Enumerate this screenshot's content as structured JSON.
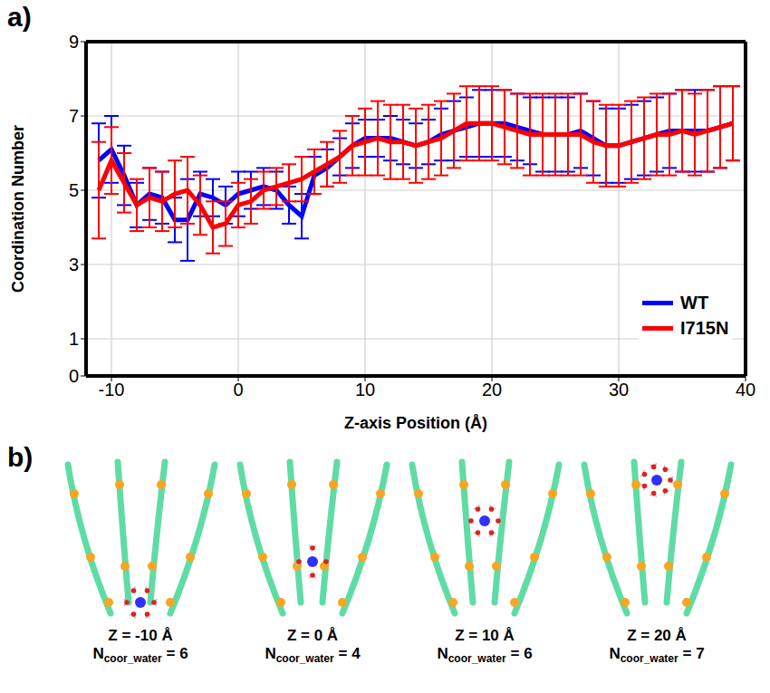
{
  "chart_data": {
    "type": "line",
    "panel_label": "a)",
    "x_label": "Z-axis Position (Å)",
    "y_label": "Coordination Number",
    "xlim": [
      -12,
      40
    ],
    "xticks": [
      -10,
      0,
      10,
      20,
      30,
      40
    ],
    "ylim": [
      0,
      9
    ],
    "yticks": [
      0,
      1,
      3,
      5,
      7,
      9
    ],
    "grid": true,
    "legend": "lower right",
    "x": [
      -11,
      -10,
      -9,
      -8,
      -7,
      -6,
      -5,
      -4,
      -3,
      -2,
      -1,
      0,
      1,
      2,
      3,
      4,
      5,
      6,
      7,
      8,
      9,
      10,
      11,
      12,
      13,
      14,
      15,
      16,
      17,
      18,
      19,
      20,
      21,
      22,
      23,
      24,
      25,
      26,
      27,
      28,
      29,
      30,
      31,
      32,
      33,
      34,
      35,
      36,
      37,
      38,
      39
    ],
    "series": [
      {
        "name": "WT",
        "color": "#0000ff",
        "values": [
          5.8,
          6.1,
          5.4,
          4.6,
          4.9,
          4.8,
          4.2,
          4.2,
          4.9,
          4.8,
          4.6,
          4.9,
          5.0,
          5.1,
          5.0,
          4.6,
          4.3,
          5.4,
          5.6,
          5.9,
          6.2,
          6.4,
          6.4,
          6.4,
          6.3,
          6.2,
          6.3,
          6.5,
          6.6,
          6.7,
          6.8,
          6.8,
          6.8,
          6.7,
          6.6,
          6.5,
          6.5,
          6.5,
          6.6,
          6.4,
          6.2,
          6.2,
          6.3,
          6.4,
          6.5,
          6.6,
          6.6,
          6.6,
          6.6,
          6.7,
          6.8
        ],
        "errors": [
          1.0,
          0.9,
          0.8,
          0.6,
          0.7,
          0.7,
          0.6,
          1.1,
          0.6,
          0.5,
          0.5,
          0.6,
          0.5,
          0.5,
          0.5,
          0.5,
          0.6,
          0.5,
          0.5,
          0.5,
          0.6,
          0.5,
          0.5,
          0.6,
          0.6,
          0.6,
          0.6,
          0.7,
          0.8,
          0.8,
          0.9,
          0.9,
          0.9,
          0.9,
          0.9,
          1.0,
          1.0,
          1.0,
          1.0,
          1.0,
          1.0,
          1.0,
          1.0,
          1.0,
          1.0,
          1.0,
          1.1,
          1.1,
          1.1,
          1.1,
          1.0
        ]
      },
      {
        "name": "I715N",
        "color": "#ff0000",
        "values": [
          5.0,
          5.8,
          5.2,
          4.6,
          4.8,
          4.7,
          4.9,
          5.0,
          4.6,
          4.0,
          4.1,
          4.6,
          4.7,
          5.0,
          5.1,
          5.2,
          5.3,
          5.5,
          5.7,
          5.9,
          6.2,
          6.3,
          6.4,
          6.3,
          6.3,
          6.2,
          6.3,
          6.4,
          6.6,
          6.8,
          6.8,
          6.8,
          6.7,
          6.6,
          6.5,
          6.5,
          6.5,
          6.5,
          6.5,
          6.3,
          6.2,
          6.2,
          6.3,
          6.4,
          6.5,
          6.5,
          6.6,
          6.5,
          6.6,
          6.7,
          6.8
        ],
        "errors": [
          1.3,
          0.9,
          0.8,
          0.7,
          0.8,
          0.8,
          0.9,
          0.9,
          0.8,
          0.7,
          0.6,
          0.6,
          0.6,
          0.5,
          0.5,
          0.5,
          0.6,
          0.6,
          0.6,
          0.7,
          0.8,
          0.9,
          1.0,
          1.0,
          1.0,
          1.0,
          1.0,
          1.0,
          1.0,
          1.0,
          1.0,
          1.0,
          1.0,
          1.0,
          1.1,
          1.1,
          1.1,
          1.1,
          1.1,
          1.1,
          1.1,
          1.1,
          1.1,
          1.1,
          1.1,
          1.1,
          1.1,
          1.1,
          1.1,
          1.1,
          1.0
        ]
      }
    ]
  },
  "diagram": {
    "panel_label": "b)",
    "n_label": {
      "main": "N",
      "sub": "coor_water",
      "sep": "="
    },
    "frames": [
      {
        "z": -10,
        "z_label": "Z = -10 Å",
        "n_coor_water": 6
      },
      {
        "z": 0,
        "z_label": "Z = 0 Å",
        "n_coor_water": 4
      },
      {
        "z": 10,
        "z_label": "Z = 10 Å",
        "n_coor_water": 6
      },
      {
        "z": 20,
        "z_label": "Z = 20 Å",
        "n_coor_water": 7
      }
    ]
  }
}
